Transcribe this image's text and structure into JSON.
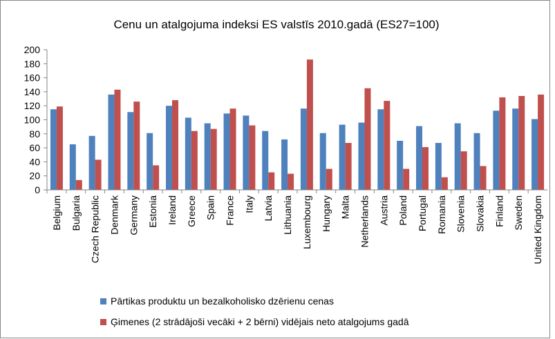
{
  "chart_data": {
    "type": "bar",
    "title": "Cenu un atalgojuma indeksi ES valstīs 2010.gadā (ES27=100)",
    "categories": [
      "Belgium",
      "Bulgaria",
      "Czech Republic",
      "Denmark",
      "Germany",
      "Estonia",
      "Ireland",
      "Greece",
      "Spain",
      "France",
      "Italy",
      "Latvia",
      "Lithuania",
      "Luxembourg",
      "Hungary",
      "Malta",
      "Netherlands",
      "Austria",
      "Poland",
      "Portugal",
      "Romania",
      "Slovenia",
      "Slovakia",
      "Finland",
      "Sweden",
      "United Kingdom"
    ],
    "series": [
      {
        "name": "Pārtikas produktu un bezalkoholisko dzērienu cenas",
        "color": "#4f81bd",
        "values": [
          115,
          65,
          77,
          136,
          111,
          81,
          120,
          103,
          95,
          109,
          106,
          84,
          72,
          116,
          81,
          93,
          96,
          115,
          70,
          91,
          67,
          95,
          81,
          113,
          116,
          101
        ]
      },
      {
        "name": "Ģimenes (2 strādājoši vecāki + 2 bērni) vidējais neto atalgojums gadā",
        "color": "#c0504d",
        "values": [
          119,
          14,
          43,
          143,
          126,
          35,
          128,
          84,
          87,
          116,
          92,
          25,
          23,
          186,
          30,
          67,
          145,
          127,
          30,
          61,
          18,
          55,
          34,
          132,
          134,
          136
        ]
      }
    ],
    "ylim": [
      0,
      200
    ],
    "yticks": [
      0,
      20,
      40,
      60,
      80,
      100,
      120,
      140,
      160,
      180,
      200
    ],
    "grid": false,
    "legend": "bottom"
  }
}
